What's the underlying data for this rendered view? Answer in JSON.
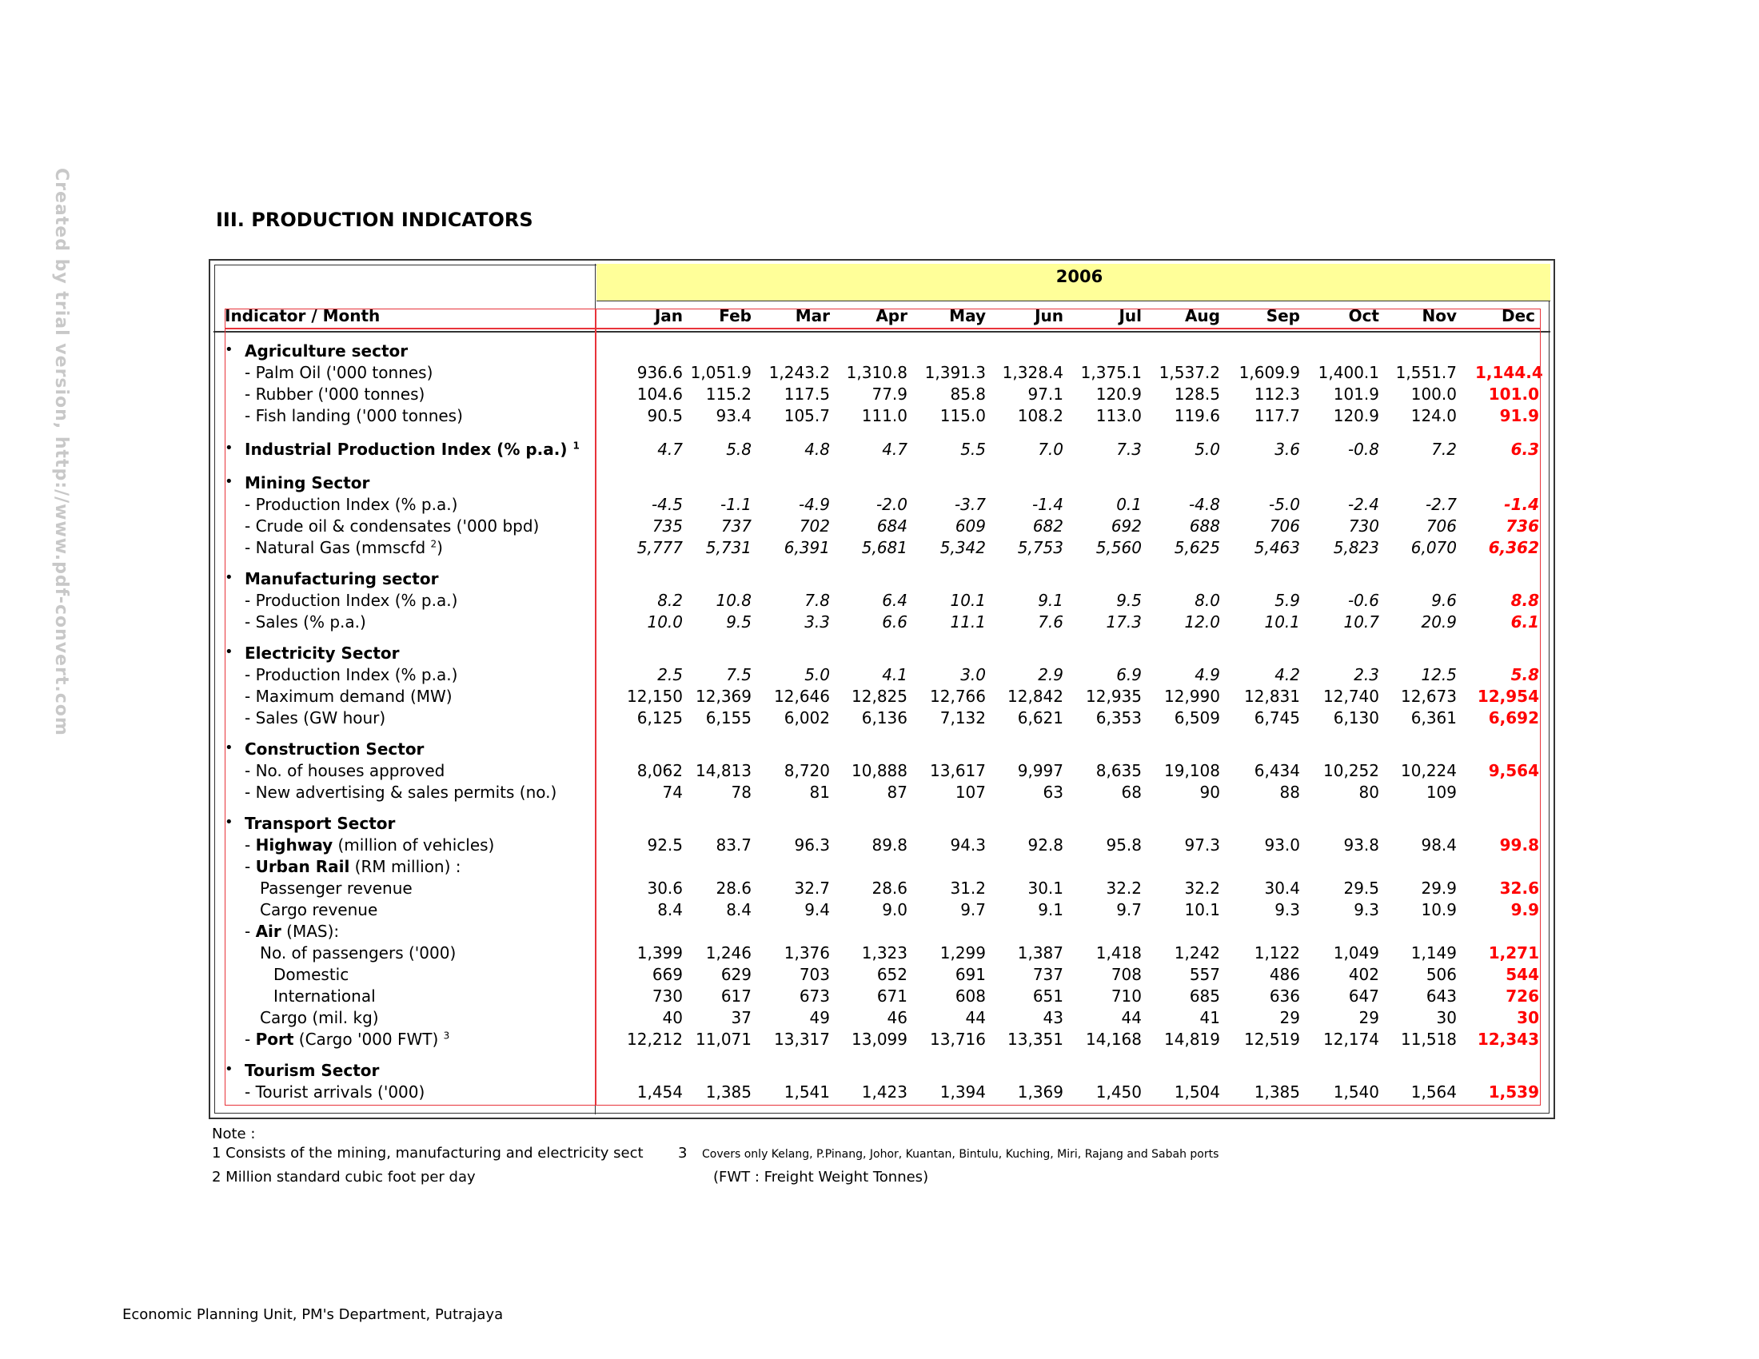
{
  "watermark": "Created by trial version, http://www.pdf-convert.com",
  "section_title": "III.   PRODUCTION INDICATORS",
  "table": {
    "year": "2006",
    "indicator_header": "Indicator / Month",
    "months": [
      "Jan",
      "Feb",
      "Mar",
      "Apr",
      "May",
      "Jun",
      "Jul",
      "Aug",
      "Sep",
      "Oct",
      "Nov",
      "Dec"
    ],
    "bullet": "•",
    "rows": [
      {
        "kind": "sector",
        "label": "Agriculture sector"
      },
      {
        "kind": "item",
        "label": "-  Palm Oil ('000 tonnes)",
        "values": [
          "936.6",
          "1,051.9",
          "1,243.2",
          "1,310.8",
          "1,391.3",
          "1,328.4",
          "1,375.1",
          "1,537.2",
          "1,609.9",
          "1,400.1",
          "1,551.7",
          "1,144.4"
        ]
      },
      {
        "kind": "item",
        "label": "-  Rubber ('000 tonnes)",
        "values": [
          "104.6",
          "115.2",
          "117.5",
          "77.9",
          "85.8",
          "97.1",
          "120.9",
          "128.5",
          "112.3",
          "101.9",
          "100.0",
          "101.0"
        ]
      },
      {
        "kind": "item",
        "label": "-  Fish landing ('000 tonnes)",
        "values": [
          "90.5",
          "93.4",
          "105.7",
          "111.0",
          "115.0",
          "108.2",
          "113.0",
          "119.6",
          "117.7",
          "120.9",
          "124.0",
          "91.9"
        ]
      },
      {
        "kind": "sector",
        "label": "Industrial Production Index (% p.a.)",
        "sup": "1",
        "italic": true,
        "values": [
          "4.7",
          "5.8",
          "4.8",
          "4.7",
          "5.5",
          "7.0",
          "7.3",
          "5.0",
          "3.6",
          "-0.8",
          "7.2",
          "6.3"
        ]
      },
      {
        "kind": "sector",
        "label": "Mining Sector"
      },
      {
        "kind": "item",
        "label": "-  Production Index (% p.a.)",
        "italic": true,
        "values": [
          "-4.5",
          "-1.1",
          "-4.9",
          "-2.0",
          "-3.7",
          "-1.4",
          "0.1",
          "-4.8",
          "-5.0",
          "-2.4",
          "-2.7",
          "-1.4"
        ]
      },
      {
        "kind": "item",
        "label": "-  Crude oil & condensates  ('000 bpd)",
        "italic": true,
        "values": [
          "735",
          "737",
          "702",
          "684",
          "609",
          "682",
          "692",
          "688",
          "706",
          "730",
          "706",
          "736"
        ]
      },
      {
        "kind": "item",
        "label": "-  Natural Gas (mmscfd",
        "sup": "2",
        "tail": ")",
        "italic": true,
        "values": [
          "5,777",
          "5,731",
          "6,391",
          "5,681",
          "5,342",
          "5,753",
          "5,560",
          "5,625",
          "5,463",
          "5,823",
          "6,070",
          "6,362"
        ]
      },
      {
        "kind": "sector",
        "label": "Manufacturing sector"
      },
      {
        "kind": "item",
        "label": "-  Production Index (% p.a.)",
        "italic": true,
        "values": [
          "8.2",
          "10.8",
          "7.8",
          "6.4",
          "10.1",
          "9.1",
          "9.5",
          "8.0",
          "5.9",
          "-0.6",
          "9.6",
          "8.8"
        ]
      },
      {
        "kind": "item",
        "label": "-  Sales (% p.a.)",
        "italic": true,
        "values": [
          "10.0",
          "9.5",
          "3.3",
          "6.6",
          "11.1",
          "7.6",
          "17.3",
          "12.0",
          "10.1",
          "10.7",
          "20.9",
          "6.1"
        ]
      },
      {
        "kind": "sector",
        "label": "Electricity Sector"
      },
      {
        "kind": "item",
        "label": "-  Production Index (% p.a.)",
        "italic": true,
        "values": [
          "2.5",
          "7.5",
          "5.0",
          "4.1",
          "3.0",
          "2.9",
          "6.9",
          "4.9",
          "4.2",
          "2.3",
          "12.5",
          "5.8"
        ]
      },
      {
        "kind": "item",
        "label": "-  Maximum demand (MW)",
        "values": [
          "12,150",
          "12,369",
          "12,646",
          "12,825",
          "12,766",
          "12,842",
          "12,935",
          "12,990",
          "12,831",
          "12,740",
          "12,673",
          "12,954"
        ]
      },
      {
        "kind": "item",
        "label": "-  Sales (GW hour)",
        "values": [
          "6,125",
          "6,155",
          "6,002",
          "6,136",
          "7,132",
          "6,621",
          "6,353",
          "6,509",
          "6,745",
          "6,130",
          "6,361",
          "6,692"
        ]
      },
      {
        "kind": "sector",
        "label": "Construction Sector"
      },
      {
        "kind": "item",
        "label": "-  No. of houses approved",
        "values": [
          "8,062",
          "14,813",
          "8,720",
          "10,888",
          "13,617",
          "9,997",
          "8,635",
          "19,108",
          "6,434",
          "10,252",
          "10,224",
          "9,564"
        ]
      },
      {
        "kind": "item",
        "label": "-  New advertising & sales permits (no.)",
        "values": [
          "74",
          "78",
          "81",
          "87",
          "107",
          "63",
          "68",
          "90",
          "88",
          "80",
          "109",
          ""
        ]
      },
      {
        "kind": "sector",
        "label": "Transport Sector"
      },
      {
        "kind": "item",
        "label_bold": "Highway",
        "label_rest": " (million of vehicles)",
        "values": [
          "92.5",
          "83.7",
          "96.3",
          "89.8",
          "94.3",
          "92.8",
          "95.8",
          "97.3",
          "93.0",
          "93.8",
          "98.4",
          "99.8"
        ]
      },
      {
        "kind": "item",
        "label_bold": "Urban Rail",
        "label_rest": " (RM million) :"
      },
      {
        "kind": "sub",
        "label": "Passenger revenue",
        "values": [
          "30.6",
          "28.6",
          "32.7",
          "28.6",
          "31.2",
          "30.1",
          "32.2",
          "32.2",
          "30.4",
          "29.5",
          "29.9",
          "32.6"
        ]
      },
      {
        "kind": "sub",
        "label": "Cargo revenue",
        "values": [
          "8.4",
          "8.4",
          "9.4",
          "9.0",
          "9.7",
          "9.1",
          "9.7",
          "10.1",
          "9.3",
          "9.3",
          "10.9",
          "9.9"
        ]
      },
      {
        "kind": "item",
        "label_bold": "Air",
        "label_rest": " (MAS):"
      },
      {
        "kind": "sub",
        "label": "No. of passengers ('000)",
        "values": [
          "1,399",
          "1,246",
          "1,376",
          "1,323",
          "1,299",
          "1,387",
          "1,418",
          "1,242",
          "1,122",
          "1,049",
          "1,149",
          "1,271"
        ]
      },
      {
        "kind": "subsub",
        "label": "Domestic",
        "values": [
          "669",
          "629",
          "703",
          "652",
          "691",
          "737",
          "708",
          "557",
          "486",
          "402",
          "506",
          "544"
        ]
      },
      {
        "kind": "subsub",
        "label": "International",
        "values": [
          "730",
          "617",
          "673",
          "671",
          "608",
          "651",
          "710",
          "685",
          "636",
          "647",
          "643",
          "726"
        ]
      },
      {
        "kind": "sub",
        "label": "Cargo (mil. kg)",
        "values": [
          "40",
          "37",
          "49",
          "46",
          "44",
          "43",
          "44",
          "41",
          "29",
          "29",
          "30",
          "30"
        ]
      },
      {
        "kind": "item",
        "label_bold": "Port",
        "label_rest": " (Cargo '000 FWT)",
        "sup": "3",
        "values": [
          "12,212",
          "11,071",
          "13,317",
          "13,099",
          "13,716",
          "13,351",
          "14,168",
          "14,819",
          "12,519",
          "12,174",
          "11,518",
          "12,343"
        ]
      },
      {
        "kind": "sector",
        "label": "Tourism Sector"
      },
      {
        "kind": "item",
        "label": "- Tourist arrivals ('000)",
        "values": [
          "1,454",
          "1,385",
          "1,541",
          "1,423",
          "1,394",
          "1,369",
          "1,450",
          "1,504",
          "1,385",
          "1,540",
          "1,564",
          "1,539"
        ]
      }
    ]
  },
  "notes": {
    "title": "Note :",
    "n1": "1    Consists of the mining, manufacturing and electricity sect",
    "n3_num": "3",
    "n3": "Covers only Kelang, P.Pinang, Johor, Kuantan, Bintulu, Kuching, Miri, Rajang and Sabah ports",
    "n2": "2   Million standard cubic foot per day",
    "fwt": "(FWT : Freight Weight Tonnes)"
  },
  "footer": "Economic Planning Unit, PM's Department, Putrajaya",
  "colors": {
    "highlight": "#ffff99",
    "dec_red": "#ff0000",
    "guide_red": "#e8333a"
  }
}
